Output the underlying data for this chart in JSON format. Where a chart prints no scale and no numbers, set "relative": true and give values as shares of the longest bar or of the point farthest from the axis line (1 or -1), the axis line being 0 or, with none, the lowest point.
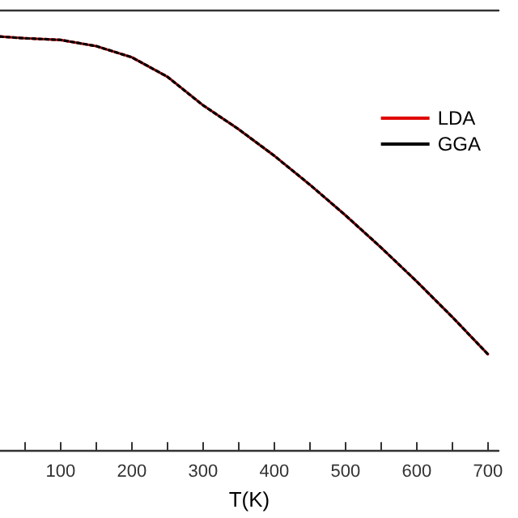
{
  "chart_data": {
    "type": "line",
    "xlabel": "T(K)",
    "relative": true,
    "x": [
      15,
      50,
      100,
      150,
      200,
      250,
      300,
      350,
      400,
      450,
      500,
      550,
      600,
      650,
      700
    ],
    "series": [
      {
        "name": "LDA",
        "color": "#e00000",
        "line_style": "solid",
        "values": [
          1.0,
          0.996,
          0.992,
          0.977,
          0.95,
          0.903,
          0.834,
          0.776,
          0.712,
          0.642,
          0.568,
          0.49,
          0.408,
          0.322,
          0.232
        ]
      },
      {
        "name": "GGA",
        "color": "#000000",
        "line_style": "dotted",
        "values": [
          1.0,
          0.996,
          0.992,
          0.977,
          0.95,
          0.903,
          0.834,
          0.776,
          0.712,
          0.642,
          0.568,
          0.49,
          0.408,
          0.322,
          0.232
        ]
      }
    ],
    "xlim": [
      15,
      715
    ],
    "xticks": [
      {
        "value": 50,
        "label": null
      },
      100,
      {
        "value": 150,
        "label": null
      },
      200,
      {
        "value": 250,
        "label": null
      },
      300,
      {
        "value": 350,
        "label": null
      },
      400,
      {
        "value": 450,
        "label": null
      },
      500,
      {
        "value": 550,
        "label": null
      },
      600,
      {
        "value": 650,
        "label": null
      },
      700
    ],
    "legend": "top right",
    "grid": false,
    "marker": "none"
  }
}
